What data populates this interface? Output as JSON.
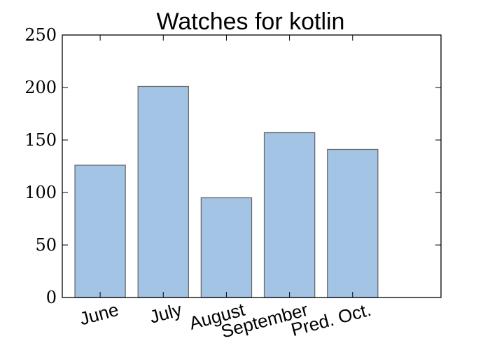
{
  "chart_data": {
    "type": "bar",
    "title": "Watches for kotlin",
    "categories": [
      "June",
      "July",
      "August",
      "September",
      "Pred. Oct."
    ],
    "values": [
      126,
      201,
      95,
      157,
      141
    ],
    "ylim": [
      0,
      250
    ],
    "yticks": [
      "0",
      "50",
      "100",
      "150",
      "200",
      "250"
    ],
    "bar_color": "#a3c4e5",
    "bar_edge_color": "#6b6b6b",
    "grid": false
  }
}
